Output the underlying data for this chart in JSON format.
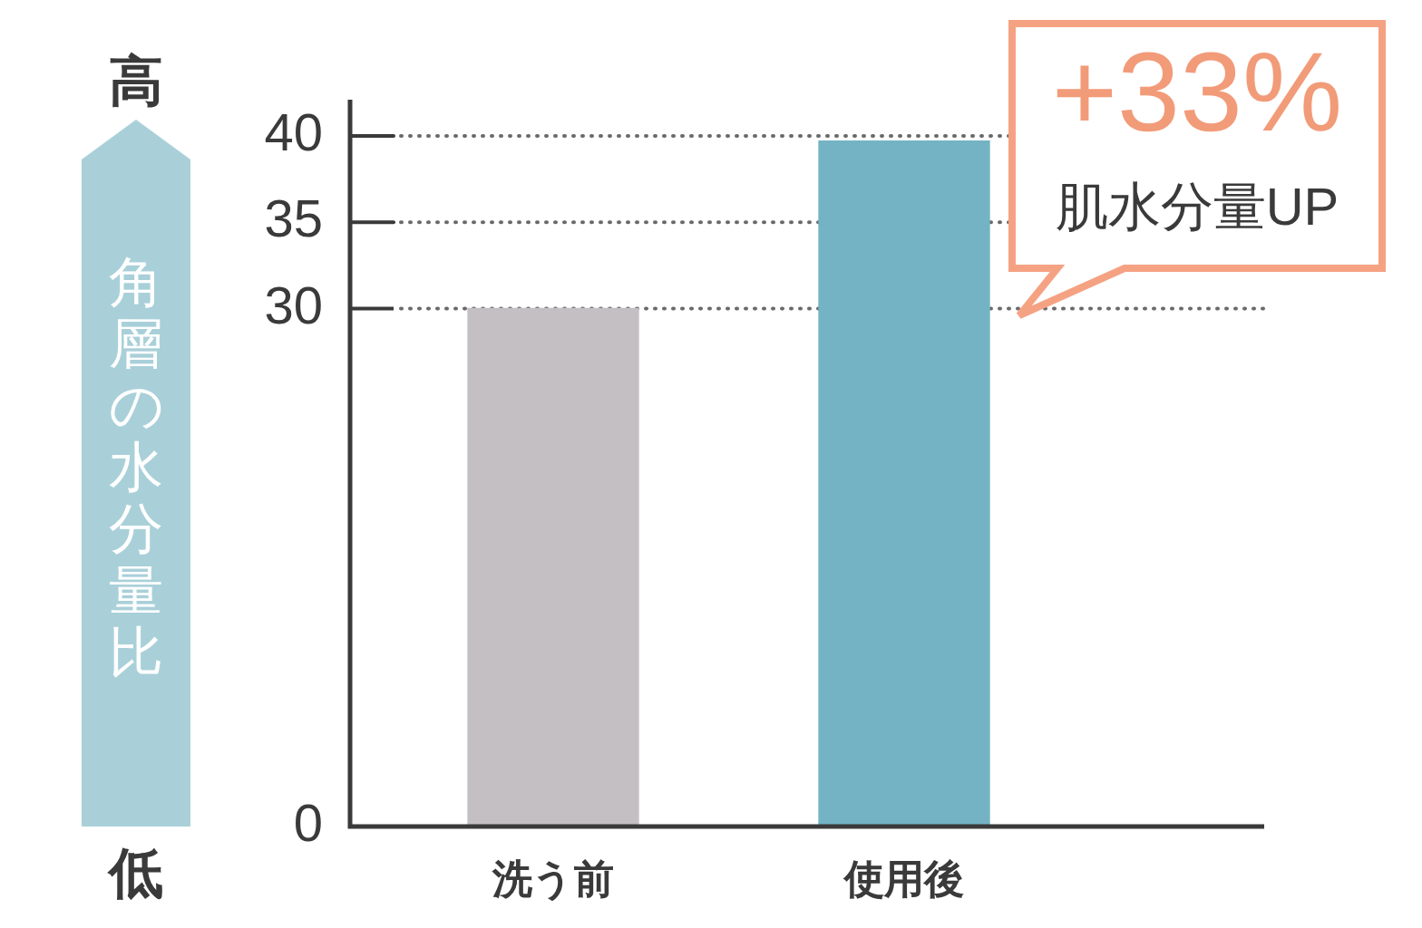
{
  "chart_data": {
    "type": "bar",
    "ylabel": "角層の水分量比",
    "categories": [
      "洗う前",
      "使用後"
    ],
    "values": [
      30,
      39.7
    ],
    "colors": [
      "#c4bfc3",
      "#73b3c4"
    ],
    "ylim": [
      0,
      42.1
    ],
    "yticks": [
      0,
      30,
      35,
      40
    ],
    "grid": "y",
    "annotations": [
      "高",
      "低",
      "+33%",
      "肌水分量UP"
    ]
  }
}
